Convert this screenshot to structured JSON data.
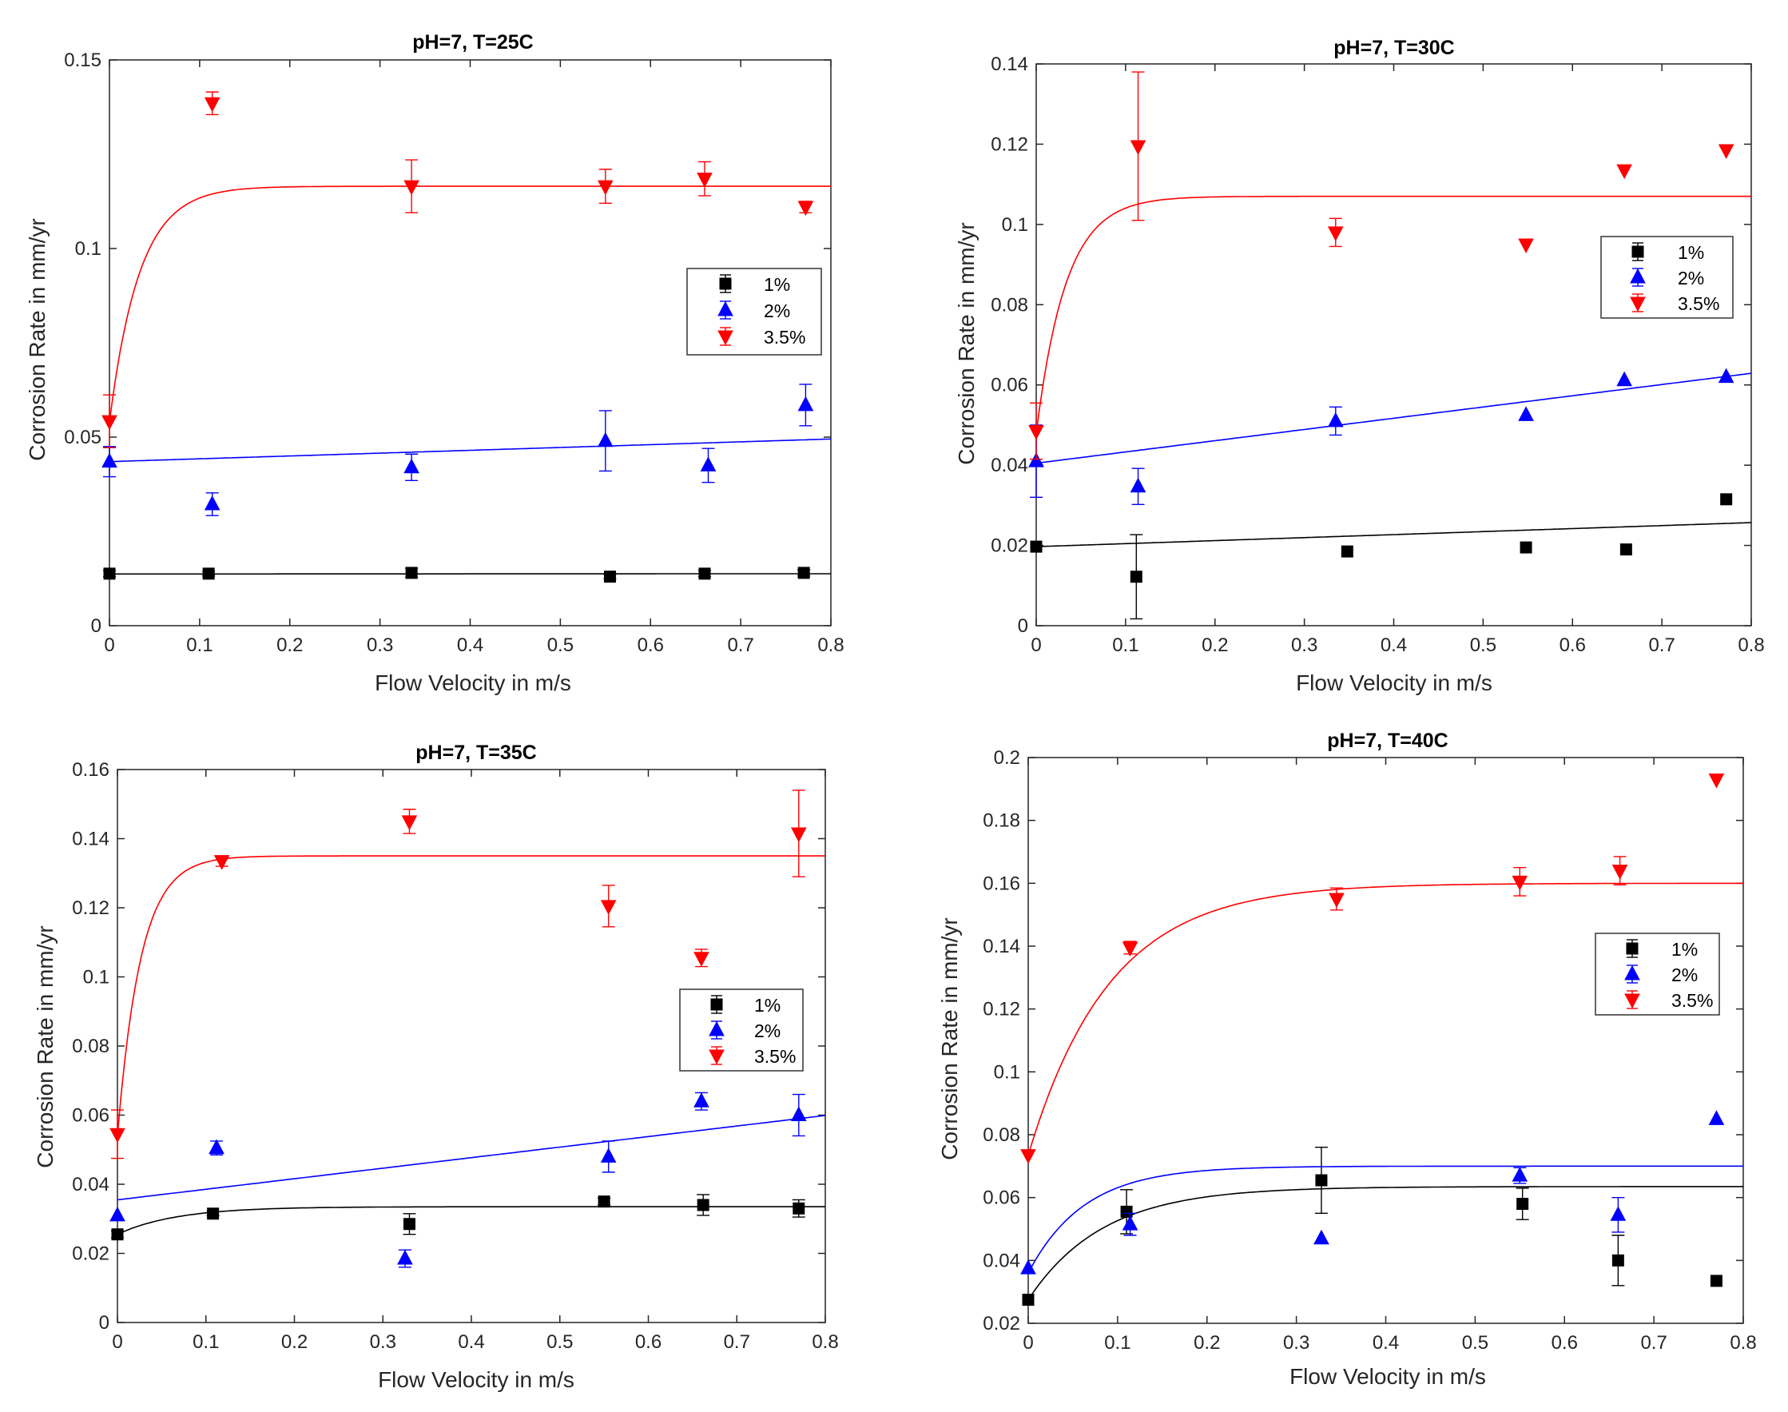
{
  "colors": {
    "1%": "#000000",
    "2%": "#0000ff",
    "3.5%": "#ff0000"
  },
  "chart_data": [
    {
      "type": "scatter",
      "title": "pH=7, T=25C",
      "xlabel": "Flow Velocity in m/s",
      "ylabel": "Corrosion Rate in mm/yr",
      "xlim": [
        0,
        0.8
      ],
      "ylim": [
        0,
        0.15
      ],
      "xticks": [
        0,
        0.1,
        0.2,
        0.3,
        0.4,
        0.5,
        0.6,
        0.7,
        0.8
      ],
      "xtick_labels": [
        "0",
        "0.1",
        "0.2",
        "0.3",
        "0.4",
        "0.5",
        "0.6",
        "0.7",
        "0.8"
      ],
      "yticks": [
        0,
        0.05,
        0.1,
        0.15
      ],
      "ytick_labels": [
        "0",
        "0.05",
        "0.1",
        "0.15"
      ],
      "legend": [
        "1%",
        "2%",
        "3.5%"
      ],
      "legend_position": "right",
      "series": [
        {
          "name": "1%",
          "marker": "square",
          "x": [
            0,
            0.11,
            0.335,
            0.555,
            0.66,
            0.77
          ],
          "y": [
            0.0138,
            0.0138,
            0.014,
            0.013,
            0.0138,
            0.014
          ],
          "err": [
            0.0008,
            0.0006,
            0.0012,
            0.0006,
            0.0008,
            0.0008
          ],
          "fit": {
            "type": "linear",
            "a": 0.0137,
            "b": 0.0001
          }
        },
        {
          "name": "2%",
          "marker": "triangle-up",
          "x": [
            0,
            0.114,
            0.335,
            0.55,
            0.664,
            0.772
          ],
          "y": [
            0.0435,
            0.0322,
            0.042,
            0.049,
            0.0425,
            0.0585
          ],
          "err": [
            0.004,
            0.003,
            0.0035,
            0.008,
            0.0045,
            0.0055
          ],
          "fit": {
            "type": "linear",
            "a": 0.0435,
            "b": 0.0075
          }
        },
        {
          "name": "3.5%",
          "marker": "triangle-down",
          "x": [
            0,
            0.114,
            0.335,
            0.55,
            0.66,
            0.772
          ],
          "y": [
            0.0542,
            0.1385,
            0.1165,
            0.1165,
            0.1185,
            0.111
          ],
          "err": [
            0.007,
            0.003,
            0.007,
            0.0045,
            0.0045,
            0.0015
          ],
          "fit": {
            "type": "exp",
            "y0": 0.054,
            "ymax": 0.1165,
            "k": 30
          }
        }
      ]
    },
    {
      "type": "scatter",
      "title": "pH=7, T=30C",
      "xlabel": "Flow Velocity in m/s",
      "ylabel": "Corrosion Rate in mm/yr",
      "xlim": [
        0,
        0.8
      ],
      "ylim": [
        0,
        0.14
      ],
      "xticks": [
        0,
        0.1,
        0.2,
        0.3,
        0.4,
        0.5,
        0.6,
        0.7,
        0.8
      ],
      "xtick_labels": [
        "0",
        "0.1",
        "0.2",
        "0.3",
        "0.4",
        "0.5",
        "0.6",
        "0.7",
        "0.8"
      ],
      "yticks": [
        0,
        0.02,
        0.04,
        0.06,
        0.08,
        0.1,
        0.12,
        0.14
      ],
      "ytick_labels": [
        "0",
        "0.02",
        "0.04",
        "0.06",
        "0.08",
        "0.1",
        "0.12",
        "0.14"
      ],
      "legend": [
        "1%",
        "2%",
        "3.5%"
      ],
      "legend_position": "right",
      "series": [
        {
          "name": "1%",
          "marker": "square",
          "x": [
            0,
            0.112,
            0.348,
            0.548,
            0.66,
            0.772
          ],
          "y": [
            0.0197,
            0.0122,
            0.0185,
            0.0195,
            0.019,
            0.0315
          ],
          "err": [
            0,
            0.0105,
            0,
            0,
            0,
            0
          ],
          "fit": {
            "type": "linear",
            "a": 0.0197,
            "b": 0.0075
          }
        },
        {
          "name": "2%",
          "marker": "triangle-up",
          "x": [
            0,
            0.114,
            0.335,
            0.548,
            0.658,
            0.772
          ],
          "y": [
            0.041,
            0.0347,
            0.051,
            0.0525,
            0.0612,
            0.062
          ],
          "err": [
            0.009,
            0.0045,
            0.0035,
            0,
            0,
            0
          ],
          "fit": {
            "type": "linear",
            "a": 0.0405,
            "b": 0.028
          }
        },
        {
          "name": "3.5%",
          "marker": "triangle-down",
          "x": [
            0,
            0.114,
            0.335,
            0.548,
            0.658,
            0.772
          ],
          "y": [
            0.0485,
            0.1195,
            0.098,
            0.095,
            0.1135,
            0.1185
          ],
          "err": [
            0.007,
            0.0185,
            0.0035,
            0,
            0,
            0
          ],
          "fit": {
            "type": "exp",
            "y0": 0.048,
            "ymax": 0.107,
            "k": 30
          }
        }
      ]
    },
    {
      "type": "scatter",
      "title": "pH=7, T=35C",
      "xlabel": "Flow Velocity in m/s",
      "ylabel": "Corrosion Rate in mm/yr",
      "xlim": [
        0,
        0.8
      ],
      "ylim": [
        0,
        0.16
      ],
      "xticks": [
        0,
        0.1,
        0.2,
        0.3,
        0.4,
        0.5,
        0.6,
        0.7,
        0.8
      ],
      "xtick_labels": [
        "0",
        "0.1",
        "0.2",
        "0.3",
        "0.4",
        "0.5",
        "0.6",
        "0.7",
        "0.8"
      ],
      "yticks": [
        0,
        0.02,
        0.04,
        0.06,
        0.08,
        0.1,
        0.12,
        0.14,
        0.16
      ],
      "ytick_labels": [
        "0",
        "0.02",
        "0.04",
        "0.06",
        "0.08",
        "0.1",
        "0.12",
        "0.14",
        "0.16"
      ],
      "legend": [
        "1%",
        "2%",
        "3.5%"
      ],
      "legend_position": "right",
      "series": [
        {
          "name": "1%",
          "marker": "square",
          "x": [
            0,
            0.108,
            0.33,
            0.55,
            0.662,
            0.77
          ],
          "y": [
            0.0255,
            0.0315,
            0.0285,
            0.035,
            0.034,
            0.033
          ],
          "err": [
            0.001,
            0.0006,
            0.003,
            0.001,
            0.003,
            0.0025
          ],
          "fit": {
            "type": "exp",
            "y0": 0.0255,
            "ymax": 0.0335,
            "k": 15
          }
        },
        {
          "name": "2%",
          "marker": "triangle-up",
          "x": [
            0,
            0.112,
            0.325,
            0.555,
            0.66,
            0.77
          ],
          "y": [
            0.031,
            0.0505,
            0.0185,
            0.048,
            0.064,
            0.06
          ],
          "err": [
            0,
            0.002,
            0.0025,
            0.0045,
            0.0025,
            0.006
          ],
          "fit": {
            "type": "linear",
            "a": 0.0355,
            "b": 0.0305
          }
        },
        {
          "name": "3.5%",
          "marker": "triangle-down",
          "x": [
            0,
            0.118,
            0.33,
            0.555,
            0.66,
            0.77
          ],
          "y": [
            0.0545,
            0.1335,
            0.145,
            0.1205,
            0.1055,
            0.1415
          ],
          "err": [
            0.007,
            0.0015,
            0.0035,
            0.006,
            0.0025,
            0.0125
          ],
          "fit": {
            "type": "exp",
            "y0": 0.054,
            "ymax": 0.135,
            "k": 38
          }
        }
      ]
    },
    {
      "type": "scatter",
      "title": "pH=7, T=40C",
      "xlabel": "Flow Velocity in m/s",
      "ylabel": "Corrosion Rate in mm/yr",
      "xlim": [
        0,
        0.8
      ],
      "ylim": [
        0.02,
        0.2
      ],
      "xticks": [
        0,
        0.1,
        0.2,
        0.3,
        0.4,
        0.5,
        0.6,
        0.7,
        0.8
      ],
      "xtick_labels": [
        "0",
        "0.1",
        "0.2",
        "0.3",
        "0.4",
        "0.5",
        "0.6",
        "0.7",
        "0.8"
      ],
      "yticks": [
        0.02,
        0.04,
        0.06,
        0.08,
        0.1,
        0.12,
        0.14,
        0.16,
        0.18,
        0.2
      ],
      "ytick_labels": [
        "0.02",
        "0.04",
        "0.06",
        "0.08",
        "0.1",
        "0.12",
        "0.14",
        "0.16",
        "0.18",
        "0.2"
      ],
      "legend": [
        "1%",
        "2%",
        "3.5%"
      ],
      "legend_position": "right",
      "series": [
        {
          "name": "1%",
          "marker": "square",
          "x": [
            0,
            0.11,
            0.328,
            0.553,
            0.66,
            0.77
          ],
          "y": [
            0.0275,
            0.0555,
            0.0655,
            0.058,
            0.04,
            0.0335
          ],
          "err": [
            0,
            0.007,
            0.0105,
            0.005,
            0.008,
            0
          ],
          "fit": {
            "type": "exp",
            "y0": 0.0275,
            "ymax": 0.0635,
            "k": 12
          }
        },
        {
          "name": "2%",
          "marker": "triangle-up",
          "x": [
            0,
            0.114,
            0.328,
            0.55,
            0.66,
            0.77
          ],
          "y": [
            0.0375,
            0.0515,
            0.047,
            0.067,
            0.0545,
            0.085
          ],
          "err": [
            0,
            0.0035,
            0,
            0.0025,
            0.0055,
            0
          ],
          "fit": {
            "type": "exp",
            "y0": 0.036,
            "ymax": 0.07,
            "k": 16
          }
        },
        {
          "name": "3.5%",
          "marker": "triangle-down",
          "x": [
            0,
            0.114,
            0.345,
            0.55,
            0.662,
            0.77
          ],
          "y": [
            0.0735,
            0.1395,
            0.155,
            0.1605,
            0.164,
            0.193
          ],
          "err": [
            0,
            0.002,
            0.0035,
            0.0045,
            0.0045,
            0
          ],
          "fit": {
            "type": "exp",
            "y0": 0.0735,
            "ymax": 0.16,
            "k": 11
          }
        }
      ]
    }
  ]
}
